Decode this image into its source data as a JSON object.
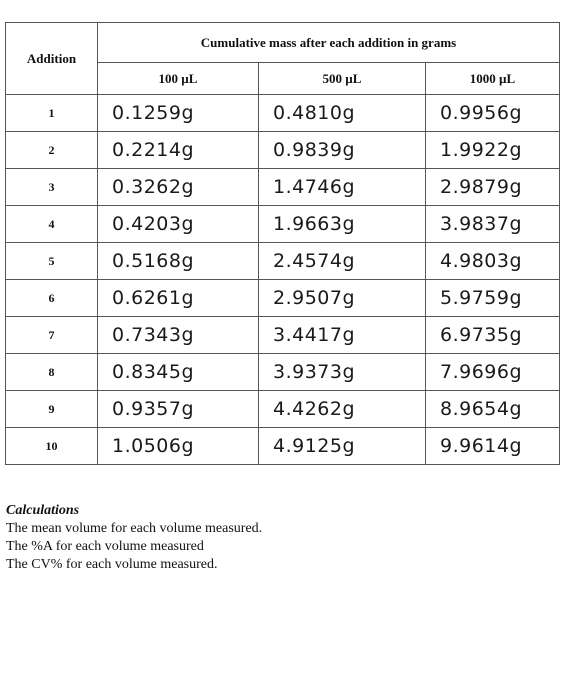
{
  "table": {
    "header": {
      "addition": "Addition",
      "span": "Cumulative mass after each addition in grams",
      "columns": [
        "100 µL",
        "500 µL",
        "1000 µL"
      ]
    },
    "rows": [
      [
        "1",
        "0.1259g",
        "0.4810g",
        "0.9956g"
      ],
      [
        "2",
        "0.2214g",
        "0.9839g",
        "1.9922g"
      ],
      [
        "3",
        "0.3262g",
        "1.4746g",
        "2.9879g"
      ],
      [
        "4",
        "0.4203g",
        "1.9663g",
        "3.9837g"
      ],
      [
        "5",
        "0.5168g",
        "2.4574g",
        "4.9803g"
      ],
      [
        "6",
        "0.6261g",
        "2.9507g",
        "5.9759g"
      ],
      [
        "7",
        "0.7343g",
        "3.4417g",
        "6.9735g"
      ],
      [
        "8",
        "0.8345g",
        "3.9373g",
        "7.9696g"
      ],
      [
        "9",
        "0.9357g",
        "4.4262g",
        "8.9654g"
      ],
      [
        "10",
        "1.0506g",
        "4.9125g",
        "9.9614g"
      ]
    ]
  },
  "calculations": {
    "title": "Calculations",
    "lines": [
      "The mean volume for each volume measured.",
      "The %A for each volume measured",
      "The CV% for each volume measured."
    ]
  }
}
